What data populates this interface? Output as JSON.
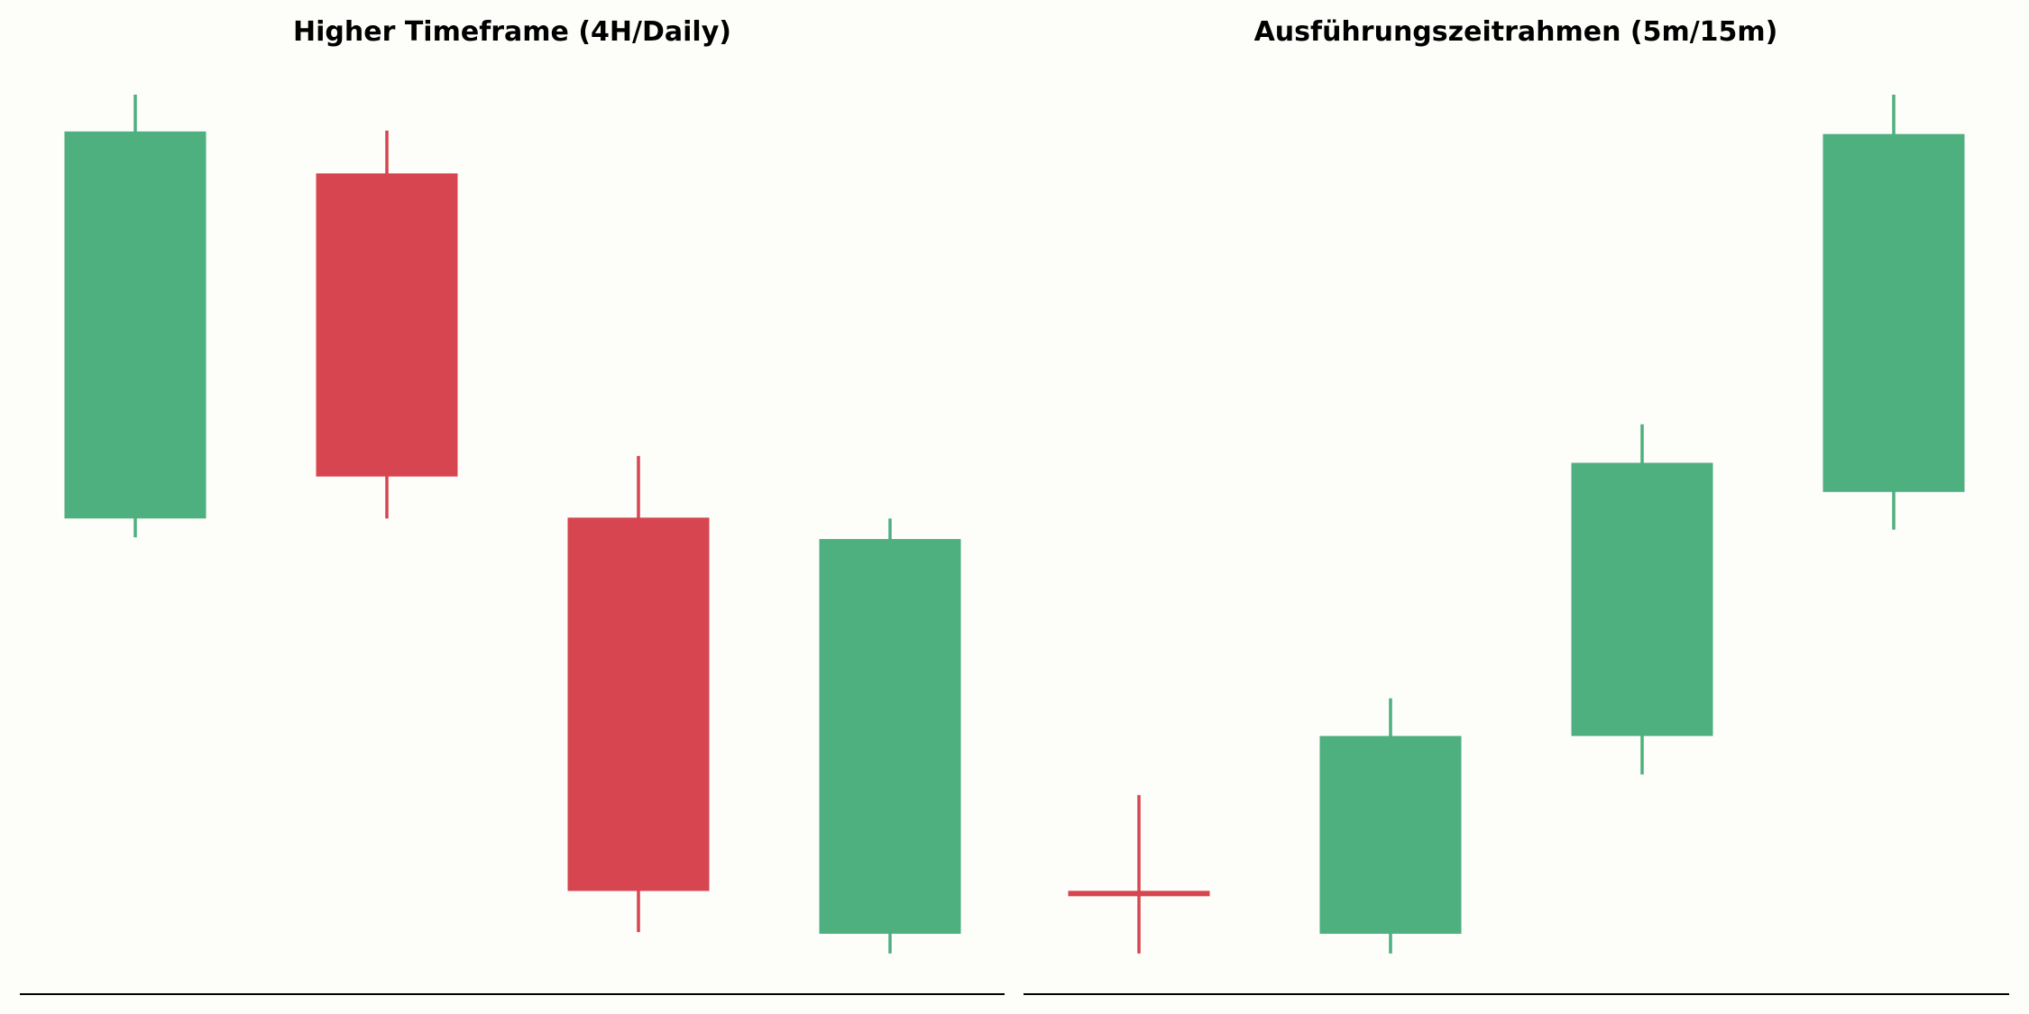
{
  "colors": {
    "background": "#fdfdfa",
    "bullish": "#4eaf7f",
    "bearish": "#d64550",
    "axis": "#000000"
  },
  "chart_data": [
    {
      "type": "candlestick",
      "title": "Higher Timeframe (4H/Daily)",
      "xlabel": "",
      "ylabel": "",
      "grid": false,
      "ylim": [
        0,
        100
      ],
      "candles": [
        {
          "open": 50.5,
          "high": 100,
          "low": 48.3,
          "close": 95.7,
          "direction": "bullish"
        },
        {
          "open": 90.8,
          "high": 95.8,
          "low": 50.5,
          "close": 55.4,
          "direction": "bearish"
        },
        {
          "open": 50.6,
          "high": 57.8,
          "low": 2.2,
          "close": 7.0,
          "direction": "bearish"
        },
        {
          "open": 2.0,
          "high": 50.5,
          "low": -0.3,
          "close": 48.1,
          "direction": "bullish"
        }
      ]
    },
    {
      "type": "candlestick",
      "title": "Ausführungszeitrahmen (5m/15m)",
      "xlabel": "",
      "ylabel": "",
      "grid": false,
      "ylim": [
        0,
        100
      ],
      "candles": [
        {
          "open": 7.0,
          "high": 18.2,
          "low": -0.3,
          "close": 6.4,
          "direction": "bearish"
        },
        {
          "open": 2.0,
          "high": 29.5,
          "low": -0.3,
          "close": 25.1,
          "direction": "bullish"
        },
        {
          "open": 25.1,
          "high": 61.5,
          "low": 20.6,
          "close": 57.0,
          "direction": "bullish"
        },
        {
          "open": 53.6,
          "high": 100,
          "low": 49.2,
          "close": 95.4,
          "direction": "bullish"
        }
      ]
    }
  ]
}
